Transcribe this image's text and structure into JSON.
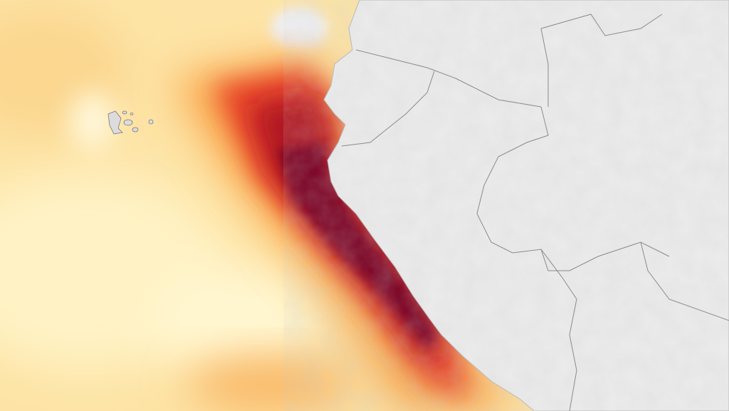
{
  "map": {
    "colors": {
      "ocean_light": "#fde9b0",
      "ocean_pale": "#fff6cf",
      "anomaly_orange": "#f7a045",
      "anomaly_red": "#d9291c",
      "anomaly_dark": "#7a0020",
      "land": "#ebebeb",
      "border": "#8a8a8a",
      "island": "#dcdcdc"
    },
    "icons": [
      "galapagos-islands",
      "country-borders",
      "coastline"
    ]
  }
}
